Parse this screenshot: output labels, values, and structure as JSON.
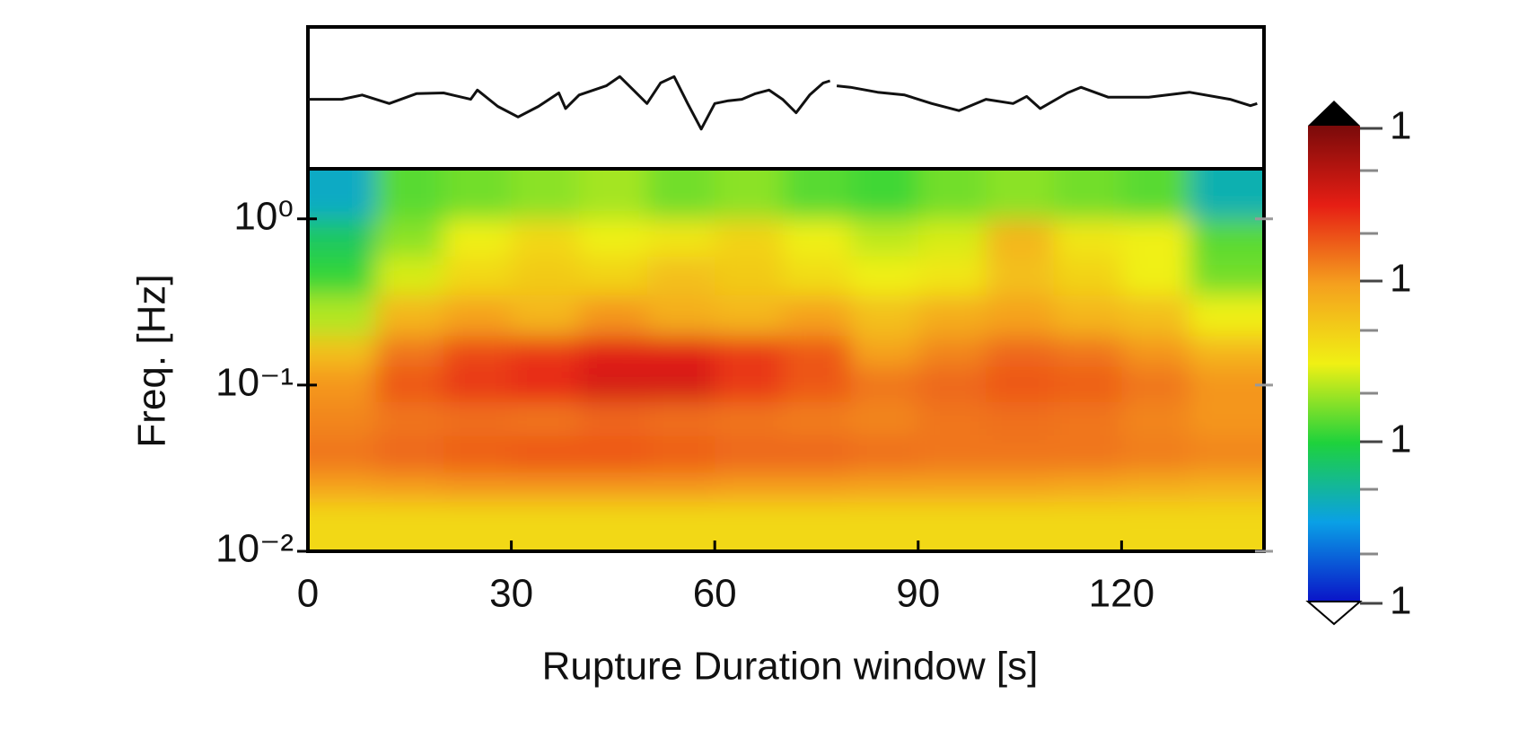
{
  "chart_data": [
    {
      "type": "line",
      "color": "#111111",
      "x": [
        0,
        5,
        8,
        12,
        16,
        20,
        24,
        25,
        28,
        31,
        34,
        37,
        38,
        40,
        44,
        46,
        48,
        50,
        52,
        54,
        56,
        58,
        60,
        62,
        64,
        66,
        68,
        70,
        72,
        74,
        76,
        77,
        77.5,
        78,
        80,
        84,
        88,
        92,
        96,
        100,
        104,
        106,
        108,
        112,
        114,
        118,
        124,
        130,
        136,
        139,
        140
      ],
      "values": [
        -0.02,
        -0.02,
        0.04,
        -0.08,
        0.06,
        0.07,
        -0.02,
        0.11,
        -0.12,
        -0.27,
        -0.12,
        0.07,
        -0.15,
        0.04,
        0.17,
        0.3,
        0.11,
        -0.08,
        0.21,
        0.3,
        -0.08,
        -0.44,
        -0.08,
        -0.04,
        -0.02,
        0.06,
        0.11,
        -0.02,
        -0.21,
        0.04,
        0.21,
        0.24,
        null,
        0.17,
        0.15,
        0.08,
        0.04,
        -0.08,
        -0.18,
        -0.02,
        -0.08,
        0.02,
        -0.15,
        0.07,
        0.15,
        0.01,
        0.01,
        0.08,
        -0.02,
        -0.11,
        -0.08
      ],
      "xlim": [
        0,
        141
      ],
      "ylim": [
        -1,
        1
      ]
    },
    {
      "type": "heatmap",
      "xlabel": "Rupture Duration window [s]",
      "ylabel": "Freq. [Hz]",
      "xlim": [
        0,
        141
      ],
      "ylim": [
        0.01,
        2
      ],
      "log_y": true,
      "xticks": [
        0,
        30,
        60,
        90,
        120
      ],
      "yticks": [
        {
          "value": 1,
          "label": "10⁰"
        },
        {
          "value": 0.1,
          "label": "10⁻¹"
        },
        {
          "value": 0.01,
          "label": "10⁻²"
        }
      ],
      "time_edges": [
        0,
        10,
        20,
        30,
        40,
        50,
        60,
        70,
        80,
        90,
        100,
        110,
        120,
        130,
        140
      ],
      "freq_edges": [
        0.01,
        0.02,
        0.03,
        0.05,
        0.08,
        0.13,
        0.2,
        0.35,
        0.6,
        1,
        2
      ],
      "zlim": [
        0,
        1
      ],
      "z": [
        [
          0.55,
          0.55,
          0.55,
          0.55,
          0.55,
          0.55,
          0.55,
          0.55,
          0.55,
          0.55,
          0.55,
          0.55,
          0.55,
          0.55
        ],
        [
          0.66,
          0.67,
          0.68,
          0.68,
          0.68,
          0.68,
          0.67,
          0.67,
          0.66,
          0.66,
          0.66,
          0.65,
          0.64,
          0.63
        ],
        [
          0.72,
          0.74,
          0.75,
          0.76,
          0.76,
          0.75,
          0.74,
          0.74,
          0.73,
          0.72,
          0.72,
          0.72,
          0.71,
          0.7
        ],
        [
          0.7,
          0.72,
          0.73,
          0.72,
          0.74,
          0.73,
          0.72,
          0.71,
          0.7,
          0.72,
          0.73,
          0.72,
          0.7,
          0.68
        ],
        [
          0.68,
          0.76,
          0.8,
          0.82,
          0.86,
          0.86,
          0.8,
          0.76,
          0.72,
          0.74,
          0.76,
          0.75,
          0.72,
          0.68
        ],
        [
          0.6,
          0.72,
          0.78,
          0.8,
          0.84,
          0.84,
          0.8,
          0.76,
          0.66,
          0.7,
          0.74,
          0.72,
          0.68,
          0.62
        ],
        [
          0.45,
          0.62,
          0.66,
          0.62,
          0.68,
          0.64,
          0.62,
          0.66,
          0.6,
          0.64,
          0.66,
          0.62,
          0.6,
          0.5
        ],
        [
          0.35,
          0.48,
          0.55,
          0.58,
          0.56,
          0.6,
          0.58,
          0.54,
          0.5,
          0.52,
          0.6,
          0.56,
          0.5,
          0.4
        ],
        [
          0.3,
          0.42,
          0.5,
          0.55,
          0.5,
          0.52,
          0.56,
          0.5,
          0.46,
          0.48,
          0.62,
          0.52,
          0.5,
          0.38
        ],
        [
          0.2,
          0.38,
          0.4,
          0.42,
          0.44,
          0.4,
          0.42,
          0.38,
          0.36,
          0.4,
          0.42,
          0.4,
          0.38,
          0.22
        ]
      ],
      "colormap": [
        "#0a14c8",
        "#0aa0e6",
        "#1ed23c",
        "#f0f014",
        "#f5a01e",
        "#e61e14",
        "#7a0a0a"
      ],
      "colorbar_ticklabels": [
        "1",
        "1",
        "1",
        "1"
      ]
    }
  ]
}
